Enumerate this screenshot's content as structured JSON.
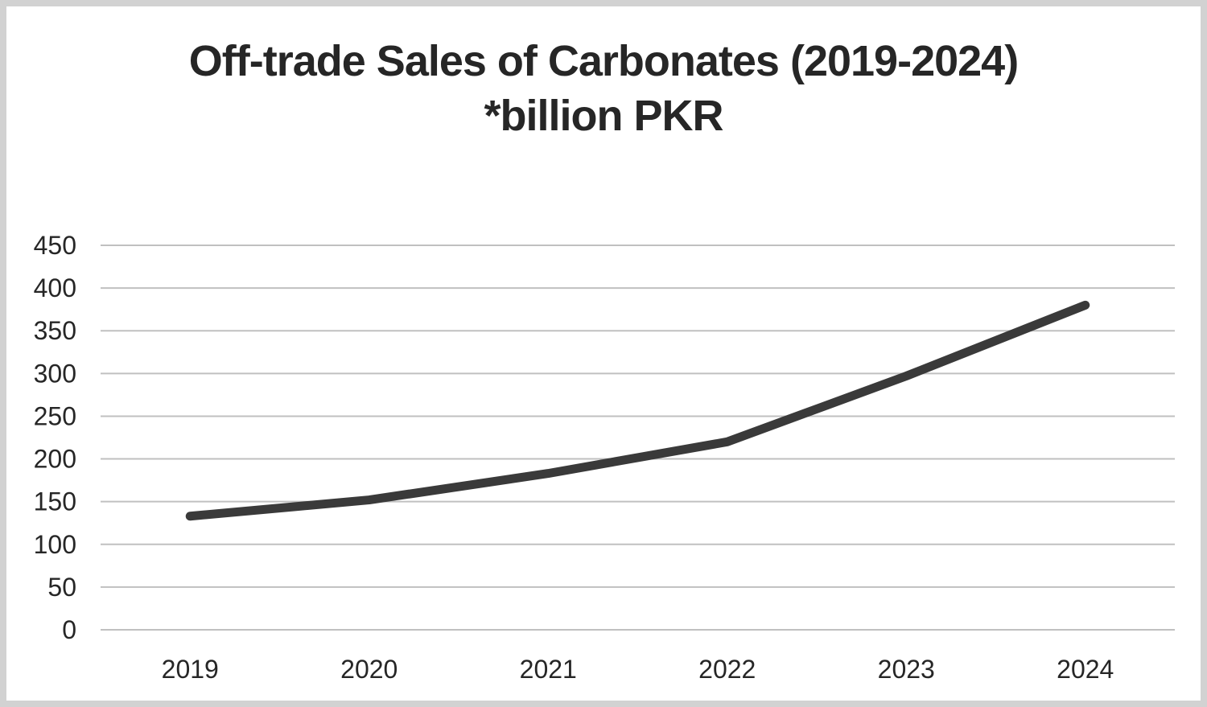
{
  "title": {
    "line1": "Off-trade Sales of Carbonates (2019-2024)",
    "line2": "*billion PKR"
  },
  "chart_data": {
    "type": "line",
    "title": "Off-trade Sales of Carbonates (2019-2024) *billion PKR",
    "categories": [
      "2019",
      "2020",
      "2021",
      "2022",
      "2023",
      "2024"
    ],
    "series": [
      {
        "name": "Off-trade sales of carbonates (billion PKR)",
        "values": [
          133,
          152,
          183,
          220,
          297,
          380
        ]
      }
    ],
    "xlabel": "",
    "ylabel": "",
    "ylim": [
      0,
      450
    ],
    "ytick_step": 50,
    "grid": true,
    "legend_position": "none",
    "colors": {
      "line": "#3a3a3a",
      "gridline": "#c0c0c0",
      "tick_text": "#262626",
      "title_text": "#262626",
      "background": "#ffffff",
      "frame_border": "#d2d2d2"
    }
  }
}
